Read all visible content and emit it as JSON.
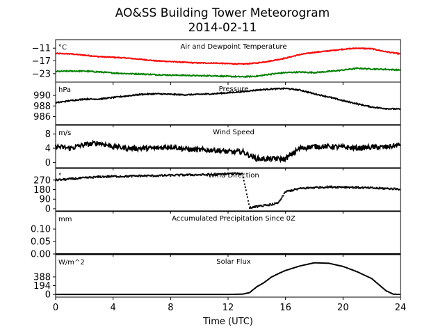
{
  "figure": {
    "title_line1": "AO&SS Building Tower Meteorogram",
    "title_line2": "2014-02-11",
    "xlabel": "Time (UTC)"
  },
  "colors": {
    "temperature": "#ff0000",
    "dewpoint": "#008000",
    "default": "#000000"
  },
  "chart_data": [
    {
      "type": "line",
      "title": "Air and Dewpoint Temperature",
      "unit": "°C",
      "xlim": [
        0,
        24
      ],
      "ylim": [
        -27,
        -7
      ],
      "yticks": [
        -11,
        -17,
        -23
      ],
      "xticks": [
        0,
        4,
        8,
        12,
        16,
        20,
        24
      ],
      "series": [
        {
          "key": "temperature",
          "x": [
            0,
            1,
            2,
            3,
            4,
            5,
            6,
            7,
            8,
            9,
            10,
            11,
            12,
            13,
            14,
            15,
            16,
            17,
            18,
            19,
            20,
            21,
            22,
            23,
            24
          ],
          "values": [
            -13.5,
            -13.7,
            -14.3,
            -15.0,
            -15.3,
            -15.7,
            -16.3,
            -17.0,
            -17.3,
            -17.7,
            -18.0,
            -18.0,
            -18.3,
            -18.5,
            -18.0,
            -17.0,
            -15.7,
            -14.0,
            -13.0,
            -12.3,
            -11.5,
            -11.0,
            -11.3,
            -12.7,
            -13.7
          ],
          "noise": 0.2
        },
        {
          "key": "dewpoint",
          "x": [
            0,
            1,
            2,
            3,
            4,
            5,
            6,
            7,
            8,
            9,
            10,
            11,
            12,
            13,
            14,
            15,
            16,
            17,
            18,
            19,
            20,
            21,
            22,
            23,
            24
          ],
          "values": [
            -22.0,
            -21.8,
            -21.8,
            -22.2,
            -22.7,
            -23.0,
            -23.2,
            -23.5,
            -23.7,
            -23.8,
            -24.0,
            -24.0,
            -24.3,
            -24.5,
            -24.2,
            -23.2,
            -22.5,
            -22.3,
            -22.5,
            -22.0,
            -21.3,
            -20.5,
            -20.8,
            -21.0,
            -21.3
          ],
          "noise": 0.25
        }
      ]
    },
    {
      "type": "line",
      "title": "Pressure",
      "unit": "hPa",
      "xlim": [
        0,
        24
      ],
      "ylim": [
        984.5,
        992.5
      ],
      "yticks": [
        990,
        988,
        986
      ],
      "xticks": [
        0,
        4,
        8,
        12,
        16,
        20,
        24
      ],
      "series": [
        {
          "key": "default",
          "x": [
            0,
            1,
            2,
            3,
            4,
            5,
            6,
            7,
            8,
            9,
            10,
            11,
            12,
            13,
            14,
            15,
            16,
            17,
            18,
            19,
            20,
            21,
            22,
            23,
            24
          ],
          "values": [
            988.6,
            989.0,
            989.3,
            989.3,
            989.6,
            989.9,
            990.2,
            990.3,
            990.2,
            990.1,
            990.2,
            990.3,
            990.5,
            990.7,
            991.0,
            991.2,
            991.3,
            991.0,
            990.3,
            989.7,
            989.0,
            988.4,
            987.8,
            987.5,
            987.4
          ],
          "noise": 0.1
        }
      ]
    },
    {
      "type": "line",
      "title": "Wind Speed",
      "unit": "m/s",
      "xlim": [
        0,
        24
      ],
      "ylim": [
        -1.5,
        10.5
      ],
      "yticks": [
        8,
        4,
        0
      ],
      "xticks": [
        0,
        4,
        8,
        12,
        16,
        20,
        24
      ],
      "series": [
        {
          "key": "default",
          "x": [
            0,
            1,
            2,
            3,
            4,
            5,
            6,
            7,
            8,
            9,
            10,
            11,
            12,
            13,
            14,
            15,
            16,
            17,
            18,
            19,
            20,
            21,
            22,
            23,
            24
          ],
          "values": [
            4.5,
            4.0,
            5.0,
            5.5,
            4.5,
            4.0,
            4.0,
            4.0,
            4.5,
            3.8,
            3.5,
            3.5,
            3.0,
            3.0,
            1.0,
            1.0,
            1.0,
            4.0,
            4.5,
            4.5,
            4.3,
            4.0,
            4.3,
            4.3,
            5.0
          ],
          "noise": 0.7
        }
      ]
    },
    {
      "type": "scatter",
      "title": "Wind Direction",
      "unit": "°",
      "xlim": [
        0,
        24
      ],
      "ylim": [
        -20,
        380
      ],
      "yticks": [
        270,
        180,
        90,
        0
      ],
      "xticks": [
        0,
        4,
        8,
        12,
        16,
        20,
        24
      ],
      "series": [
        {
          "key": "default",
          "x": [
            0,
            1,
            2,
            3,
            4,
            5,
            6,
            7,
            8,
            9,
            10,
            11,
            12,
            13,
            13.5,
            14,
            14.5,
            15,
            15.5,
            16,
            17,
            18,
            19,
            20,
            21,
            22,
            23,
            24
          ],
          "values": [
            270,
            280,
            290,
            300,
            305,
            305,
            310,
            310,
            315,
            318,
            320,
            320,
            330,
            330,
            10,
            20,
            30,
            40,
            50,
            160,
            190,
            200,
            205,
            205,
            200,
            195,
            190,
            185
          ],
          "noise": 8
        }
      ]
    },
    {
      "type": "line",
      "title": "Accumulated Precipitation Since 0Z",
      "unit": "mm",
      "xlim": [
        0,
        24
      ],
      "ylim": [
        0,
        0.17
      ],
      "yticks": [
        0.1,
        0.05,
        0.0
      ],
      "ytick_labels": [
        "0.10",
        "0.05",
        "0.00"
      ],
      "xticks": [
        0,
        4,
        8,
        12,
        16,
        20,
        24
      ],
      "series": [
        {
          "key": "default",
          "x": [
            0,
            24
          ],
          "values": [
            0,
            0
          ],
          "noise": 0
        }
      ]
    },
    {
      "type": "line",
      "title": "Solar Flux",
      "unit": "W/m^2",
      "xlim": [
        0,
        24
      ],
      "ylim": [
        -60,
        880
      ],
      "yticks": [
        388,
        194,
        0
      ],
      "xticks": [
        0,
        4,
        8,
        12,
        16,
        20,
        24
      ],
      "xtick_labels": [
        "0",
        "4",
        "8",
        "12",
        "16",
        "20",
        "24"
      ],
      "series": [
        {
          "key": "default",
          "x": [
            0,
            12,
            13,
            13.5,
            14,
            14.5,
            15,
            15.5,
            16,
            17,
            18,
            19,
            20,
            21,
            22,
            23,
            23.5,
            24
          ],
          "values": [
            0,
            0,
            5,
            40,
            170,
            260,
            380,
            460,
            530,
            630,
            700,
            690,
            620,
            500,
            350,
            80,
            5,
            0
          ],
          "noise": 0
        }
      ]
    }
  ]
}
